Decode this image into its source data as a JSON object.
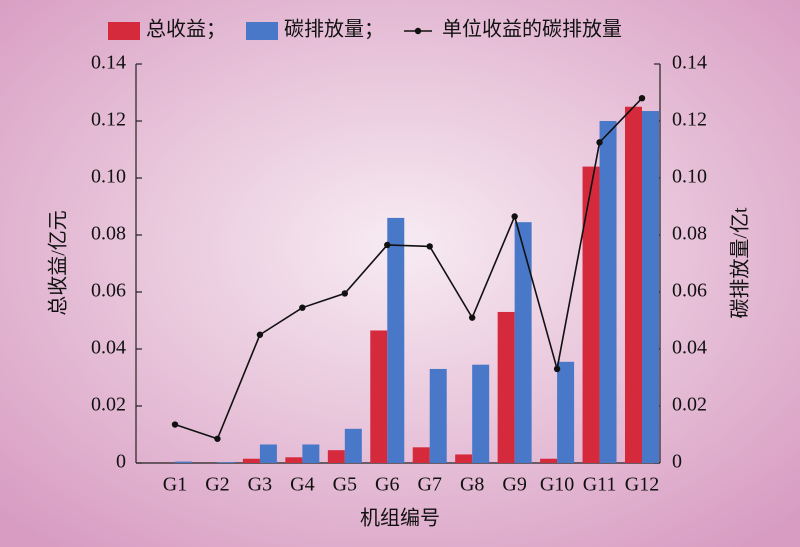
{
  "chart_data": {
    "type": "bar",
    "categories": [
      "G1",
      "G2",
      "G3",
      "G4",
      "G5",
      "G6",
      "G7",
      "G8",
      "G9",
      "G10",
      "G11",
      "G12"
    ],
    "series": [
      {
        "name": "总收益；",
        "color": "#d42a3c",
        "values": [
          0,
          0,
          0.0015,
          0.002,
          0.0045,
          0.0465,
          0.0055,
          0.003,
          0.053,
          0.0015,
          0.104,
          0.125
        ]
      },
      {
        "name": "碳排放量；",
        "color": "#4a78c8",
        "axis": "y2",
        "values": [
          0.0005,
          0.0003,
          0.0065,
          0.0065,
          0.012,
          0.086,
          0.033,
          0.0345,
          0.0845,
          0.0355,
          0.12,
          0.1235
        ]
      },
      {
        "name": "单位收益的碳排放量",
        "color": "#111111",
        "type": "line",
        "axis": "y2",
        "values": [
          0.0135,
          0.0085,
          0.045,
          0.0545,
          0.0595,
          0.0765,
          0.076,
          0.051,
          0.0865,
          0.033,
          0.1125,
          0.128
        ]
      }
    ],
    "xlabel": "机组编号",
    "ylabel": "总收益/亿元",
    "y2label": "碳排放量/亿t",
    "ylim": [
      0,
      0.14
    ],
    "yticks": [
      0,
      0.02,
      0.04,
      0.06,
      0.08,
      {
        "value": 0.1,
        "label": "0.10"
      },
      0.12,
      0.14
    ],
    "y2lim": [
      0,
      0.14
    ],
    "y2ticks": [
      0,
      0.02,
      0.04,
      0.06,
      0.08,
      {
        "value": 0.1,
        "label": "0.10"
      },
      0.12,
      0.14
    ]
  }
}
